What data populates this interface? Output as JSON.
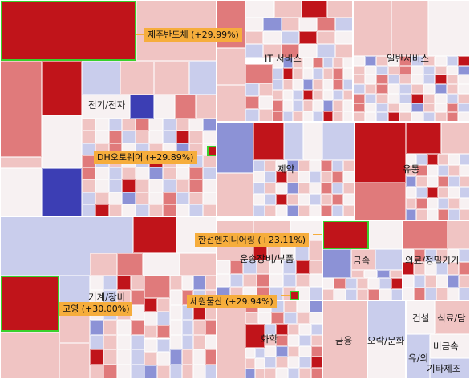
{
  "palette": {
    "up_strong": "#c0141a",
    "up_mid": "#e07a7b",
    "up_light": "#f0c4c3",
    "flat": "#f7f1f2",
    "down_light": "#c9cdec",
    "down_mid": "#8c92d6",
    "down_strong": "#3c3eb4",
    "highlight_border": "#39d12c",
    "callout_bg": "#f6ad3c"
  },
  "sectors": [
    {
      "id": "electronics",
      "label": "전기/전자"
    },
    {
      "id": "it-service",
      "label": "IT 서비스"
    },
    {
      "id": "general-service",
      "label": "일반서비스"
    },
    {
      "id": "pharma",
      "label": "제약"
    },
    {
      "id": "distribution",
      "label": "유통"
    },
    {
      "id": "machinery",
      "label": "기계/장비"
    },
    {
      "id": "transport-equipment",
      "label": "운송장비/부품"
    },
    {
      "id": "metal",
      "label": "금속"
    },
    {
      "id": "medical-precision",
      "label": "의료/정밀기기"
    },
    {
      "id": "construction",
      "label": "건설"
    },
    {
      "id": "food-tobacco",
      "label": "식료/담"
    },
    {
      "id": "chemical",
      "label": "화학"
    },
    {
      "id": "finance",
      "label": "금융"
    },
    {
      "id": "entertainment",
      "label": "오락/문화"
    },
    {
      "id": "distribution-2",
      "label": "유/의"
    },
    {
      "id": "nonmetal",
      "label": "비금속"
    },
    {
      "id": "other-manufacturing",
      "label": "기타제조"
    }
  ],
  "callouts": [
    {
      "id": "jeju-semiconductor",
      "label": "제주반도체 (+29.99%)",
      "change_pct": 29.99
    },
    {
      "id": "dh-autoware",
      "label": "DH오토웨어 (+29.89%)",
      "change_pct": 29.89
    },
    {
      "id": "hanshin-engineering",
      "label": "한선엔지니어링 (+23.11%)",
      "change_pct": 23.11
    },
    {
      "id": "sewon-mulsan",
      "label": "세원물산 (+29.94%)",
      "change_pct": 29.94
    },
    {
      "id": "goyoung",
      "label": "고영 (+30.00%)",
      "change_pct": 30.0
    }
  ]
}
